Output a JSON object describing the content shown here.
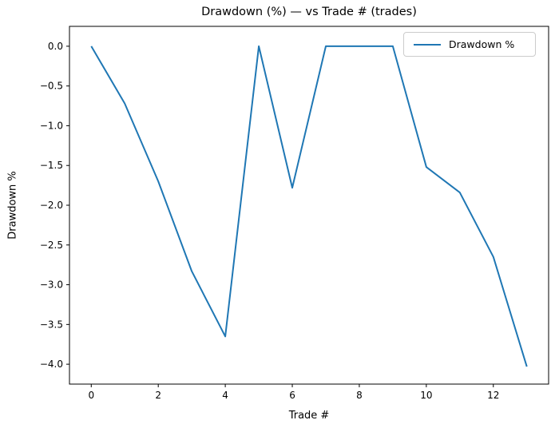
{
  "figure": {
    "title": "Drawdown (%) — vs Trade # (trades)",
    "background_color": "#ffffff"
  },
  "chart_data": {
    "type": "line",
    "title": "Drawdown (%) — vs Trade # (trades)",
    "xlabel": "Trade #",
    "ylabel": "Drawdown %",
    "x": [
      0,
      1,
      2,
      3,
      4,
      5,
      6,
      7,
      8,
      9,
      10,
      11,
      12,
      13
    ],
    "series": [
      {
        "name": "Drawdown %",
        "color": "#1f77b4",
        "values": [
          0.0,
          -0.72,
          -1.7,
          -2.83,
          -3.65,
          0.0,
          -1.78,
          0.0,
          0.0,
          0.0,
          -1.52,
          -1.84,
          -2.65,
          -4.03
        ]
      }
    ],
    "xlim": [
      -0.65,
      13.65
    ],
    "ylim": [
      -4.25,
      0.25
    ],
    "xticks": {
      "values": [
        0,
        2,
        4,
        6,
        8,
        10,
        12
      ],
      "labels": [
        "0",
        "2",
        "4",
        "6",
        "8",
        "10",
        "12"
      ]
    },
    "yticks": {
      "values": [
        0.0,
        -0.5,
        -1.0,
        -1.5,
        -2.0,
        -2.5,
        -3.0,
        -3.5,
        -4.0
      ],
      "labels": [
        "0.0",
        "−0.5",
        "−1.0",
        "−1.5",
        "−2.0",
        "−2.5",
        "−3.0",
        "−3.5",
        "−4.0"
      ]
    },
    "grid": false,
    "legend": {
      "position": "upper-right",
      "entries": [
        {
          "label": "Drawdown %",
          "color": "#1f77b4"
        }
      ]
    },
    "line_width": 2,
    "axis_color": "#000000"
  }
}
